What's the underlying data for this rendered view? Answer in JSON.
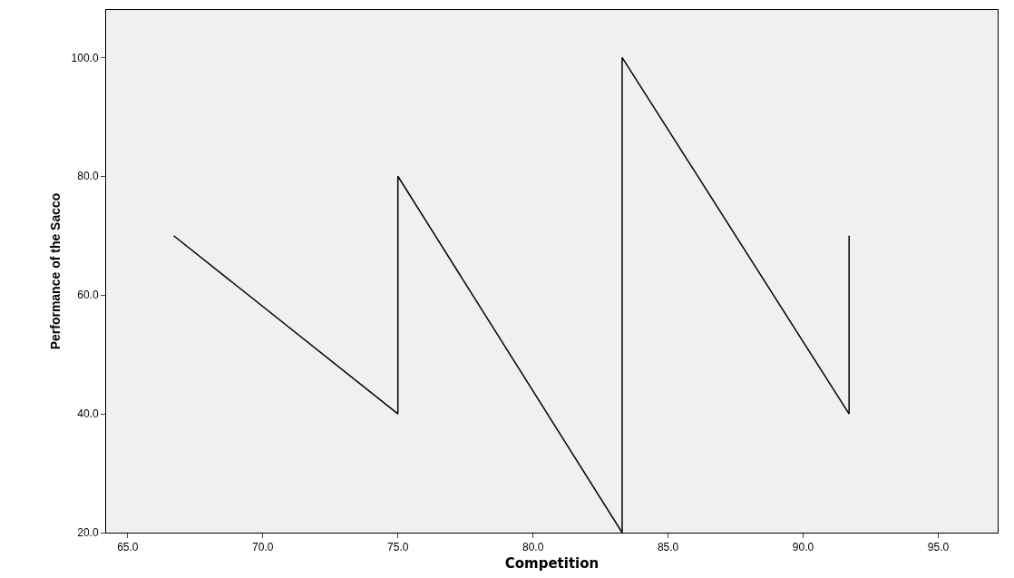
{
  "chart_data": {
    "type": "line",
    "xlabel": "Competition",
    "ylabel": "Performance of the Sacco",
    "x": [
      66.7,
      75.0,
      75.0,
      83.3,
      83.3,
      91.7,
      91.7
    ],
    "values": [
      70,
      40,
      80,
      20,
      100,
      40,
      70
    ],
    "color": "#000000",
    "xlim": [
      64.2,
      97.2
    ],
    "xticks": [
      {
        "value": 65,
        "label": "65.0"
      },
      {
        "value": 70,
        "label": "70.0"
      },
      {
        "value": 75,
        "label": "75.0"
      },
      {
        "value": 80,
        "label": "80.0"
      },
      {
        "value": 85,
        "label": "85.0"
      },
      {
        "value": 90,
        "label": "90.0"
      },
      {
        "value": 95,
        "label": "95.0"
      }
    ],
    "ylim": [
      20,
      108
    ],
    "yticks": [
      {
        "value": 20,
        "label": "20.0"
      },
      {
        "value": 40,
        "label": "40.0"
      },
      {
        "value": 60,
        "label": "60.0"
      },
      {
        "value": 80,
        "label": "80.0"
      },
      {
        "value": 100,
        "label": "100.0"
      }
    ],
    "grid": false,
    "marker": "none",
    "line_style": "solid"
  }
}
